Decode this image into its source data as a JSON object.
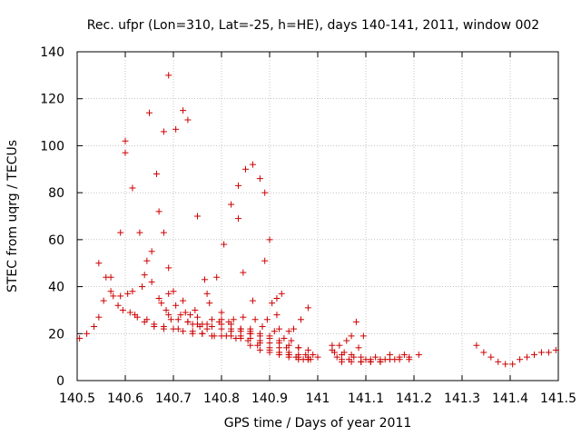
{
  "chart_data": {
    "type": "scatter",
    "title": "Rec. ufpr (Lon=310, Lat=-25, h=HE), days 140-141, 2011, window 002",
    "xlabel": "GPS time / Days of year 2011",
    "ylabel": "STEC from uqrg / TECUs",
    "xlim": [
      140.5,
      141.5
    ],
    "ylim": [
      0,
      140
    ],
    "x_ticks": [
      140.5,
      140.6,
      140.7,
      140.8,
      140.9,
      141.0,
      141.1,
      141.2,
      141.3,
      141.4,
      141.5
    ],
    "x_tick_labels": [
      "140.5",
      "140.6",
      "140.7",
      "140.8",
      "140.9",
      "141",
      "141.1",
      "141.2",
      "141.3",
      "141.4",
      "141.5"
    ],
    "y_ticks": [
      0,
      20,
      40,
      60,
      80,
      100,
      120,
      140
    ],
    "y_tick_labels": [
      "0",
      "20",
      "40",
      "60",
      "80",
      "100",
      "120",
      "140"
    ],
    "grid": true,
    "marker": "plus",
    "color": "#cc0000",
    "series": [
      {
        "points": [
          [
            140.505,
            18
          ],
          [
            140.52,
            20
          ],
          [
            140.535,
            23
          ],
          [
            140.545,
            27
          ],
          [
            140.545,
            50
          ],
          [
            140.555,
            34
          ],
          [
            140.56,
            44
          ],
          [
            140.57,
            44
          ],
          [
            140.57,
            38
          ],
          [
            140.575,
            36
          ],
          [
            140.585,
            32
          ],
          [
            140.59,
            63
          ],
          [
            140.59,
            36
          ],
          [
            140.595,
            30
          ],
          [
            140.6,
            102
          ],
          [
            140.6,
            97
          ],
          [
            140.605,
            37
          ],
          [
            140.61,
            29
          ],
          [
            140.615,
            82
          ],
          [
            140.615,
            38
          ],
          [
            140.625,
            27
          ],
          [
            140.63,
            63
          ],
          [
            140.635,
            40
          ],
          [
            140.64,
            45
          ],
          [
            140.645,
            51
          ],
          [
            140.645,
            26
          ],
          [
            140.65,
            114
          ],
          [
            140.655,
            55
          ],
          [
            140.655,
            42
          ],
          [
            140.66,
            24
          ],
          [
            140.665,
            88
          ],
          [
            140.67,
            72
          ],
          [
            140.67,
            35
          ],
          [
            140.675,
            33
          ],
          [
            140.68,
            106
          ],
          [
            140.68,
            63
          ],
          [
            140.68,
            23
          ],
          [
            140.685,
            30
          ],
          [
            140.69,
            130
          ],
          [
            140.69,
            48
          ],
          [
            140.69,
            37
          ],
          [
            140.695,
            26
          ],
          [
            140.7,
            38
          ],
          [
            140.705,
            107
          ],
          [
            140.705,
            32
          ],
          [
            140.71,
            22
          ],
          [
            140.715,
            28
          ],
          [
            140.72,
            115
          ],
          [
            140.72,
            34
          ],
          [
            140.725,
            29
          ],
          [
            140.73,
            111
          ],
          [
            140.73,
            25
          ],
          [
            140.735,
            28
          ],
          [
            140.74,
            21
          ],
          [
            140.745,
            30
          ],
          [
            140.75,
            70
          ],
          [
            140.75,
            27
          ],
          [
            140.755,
            23
          ],
          [
            140.76,
            20
          ],
          [
            140.765,
            43
          ],
          [
            140.77,
            37
          ],
          [
            140.77,
            22
          ],
          [
            140.775,
            33
          ],
          [
            140.78,
            26
          ],
          [
            140.785,
            19
          ],
          [
            140.79,
            44
          ],
          [
            140.795,
            25
          ],
          [
            140.8,
            29
          ],
          [
            140.8,
            22
          ],
          [
            140.805,
            58
          ],
          [
            140.81,
            19
          ],
          [
            140.815,
            25
          ],
          [
            140.82,
            75
          ],
          [
            140.825,
            26
          ],
          [
            140.83,
            18
          ],
          [
            140.835,
            83
          ],
          [
            140.835,
            69
          ],
          [
            140.84,
            22
          ],
          [
            140.845,
            27
          ],
          [
            140.845,
            46
          ],
          [
            140.85,
            90
          ],
          [
            140.855,
            17
          ],
          [
            140.86,
            21
          ],
          [
            140.865,
            34
          ],
          [
            140.865,
            92
          ],
          [
            140.87,
            26
          ],
          [
            140.875,
            15
          ],
          [
            140.88,
            86
          ],
          [
            140.885,
            23
          ],
          [
            140.89,
            80
          ],
          [
            140.89,
            51
          ],
          [
            140.895,
            26
          ],
          [
            140.9,
            14
          ],
          [
            140.9,
            60
          ],
          [
            140.905,
            33
          ],
          [
            140.91,
            21
          ],
          [
            140.915,
            28
          ],
          [
            140.915,
            35
          ],
          [
            140.92,
            12
          ],
          [
            140.925,
            37
          ],
          [
            140.93,
            18
          ],
          [
            140.935,
            14
          ],
          [
            140.94,
            11
          ],
          [
            140.945,
            17
          ],
          [
            140.95,
            22
          ],
          [
            140.955,
            10
          ],
          [
            140.96,
            14
          ],
          [
            140.965,
            26
          ],
          [
            140.97,
            9
          ],
          [
            140.975,
            11
          ],
          [
            140.98,
            31
          ],
          [
            140.985,
            9
          ],
          [
            140.99,
            11
          ],
          [
            141.03,
            15
          ],
          [
            141.035,
            12
          ],
          [
            141.04,
            10
          ],
          [
            141.045,
            15
          ],
          [
            141.05,
            8
          ],
          [
            141.055,
            12
          ],
          [
            141.06,
            17
          ],
          [
            141.065,
            9
          ],
          [
            141.07,
            19
          ],
          [
            141.075,
            10
          ],
          [
            141.08,
            25
          ],
          [
            141.085,
            14
          ],
          [
            141.09,
            8
          ],
          [
            141.095,
            19
          ],
          [
            141.1,
            9
          ],
          [
            141.11,
            8
          ],
          [
            141.12,
            10
          ],
          [
            141.13,
            8
          ],
          [
            141.14,
            9
          ],
          [
            141.15,
            11
          ],
          [
            141.16,
            9
          ],
          [
            141.17,
            10
          ],
          [
            141.18,
            11
          ],
          [
            141.19,
            10
          ],
          [
            141.21,
            11
          ],
          [
            141.33,
            15
          ],
          [
            141.345,
            12
          ],
          [
            141.36,
            10
          ],
          [
            141.375,
            8
          ],
          [
            141.39,
            7
          ],
          [
            141.405,
            7
          ],
          [
            141.42,
            9
          ],
          [
            141.435,
            10
          ],
          [
            141.45,
            11
          ],
          [
            141.465,
            12
          ],
          [
            141.48,
            12
          ],
          [
            141.495,
            13
          ],
          [
            140.62,
            28
          ],
          [
            140.64,
            25
          ],
          [
            140.66,
            23
          ],
          [
            140.68,
            22
          ],
          [
            140.7,
            22
          ],
          [
            140.72,
            21
          ],
          [
            140.74,
            20
          ],
          [
            140.76,
            20
          ],
          [
            140.78,
            19
          ],
          [
            140.8,
            19
          ],
          [
            140.82,
            19
          ],
          [
            140.84,
            19
          ],
          [
            140.86,
            18
          ],
          [
            140.88,
            17
          ],
          [
            140.9,
            16
          ],
          [
            140.92,
            14
          ],
          [
            140.94,
            12
          ],
          [
            140.96,
            11
          ],
          [
            140.98,
            10
          ],
          [
            141.0,
            10
          ],
          [
            140.82,
            21
          ],
          [
            140.84,
            18
          ],
          [
            140.86,
            15
          ],
          [
            140.88,
            13
          ],
          [
            140.9,
            12
          ],
          [
            140.92,
            11
          ],
          [
            140.94,
            10
          ],
          [
            140.96,
            9
          ],
          [
            140.98,
            9
          ],
          [
            140.8,
            26
          ],
          [
            140.82,
            24
          ],
          [
            140.84,
            22
          ],
          [
            140.86,
            20
          ],
          [
            140.88,
            19
          ],
          [
            140.9,
            18
          ],
          [
            140.92,
            16
          ],
          [
            140.94,
            15
          ],
          [
            140.96,
            14
          ],
          [
            140.98,
            13
          ],
          [
            140.86,
            22
          ],
          [
            140.88,
            16
          ],
          [
            140.9,
            13
          ],
          [
            140.92,
            12
          ],
          [
            140.94,
            11
          ],
          [
            140.96,
            10
          ],
          [
            140.98,
            9
          ],
          [
            141.03,
            13
          ],
          [
            141.05,
            11
          ],
          [
            141.07,
            11
          ],
          [
            141.09,
            10
          ],
          [
            141.11,
            9
          ],
          [
            141.13,
            9
          ],
          [
            141.15,
            9
          ],
          [
            141.17,
            9
          ],
          [
            141.19,
            9
          ],
          [
            141.05,
            9
          ],
          [
            141.07,
            8
          ],
          [
            141.09,
            8
          ],
          [
            141.11,
            8
          ],
          [
            141.13,
            8
          ],
          [
            140.74,
            24
          ],
          [
            140.76,
            24
          ],
          [
            140.78,
            23
          ],
          [
            140.8,
            24
          ],
          [
            140.82,
            22
          ],
          [
            140.84,
            21
          ],
          [
            140.86,
            20
          ],
          [
            140.88,
            20
          ],
          [
            140.9,
            19
          ],
          [
            140.92,
            17
          ],
          [
            140.69,
            28
          ],
          [
            140.71,
            26
          ],
          [
            140.73,
            25
          ],
          [
            140.75,
            24
          ],
          [
            140.77,
            24
          ],
          [
            140.92,
            22
          ],
          [
            140.94,
            21
          ]
        ]
      }
    ]
  }
}
